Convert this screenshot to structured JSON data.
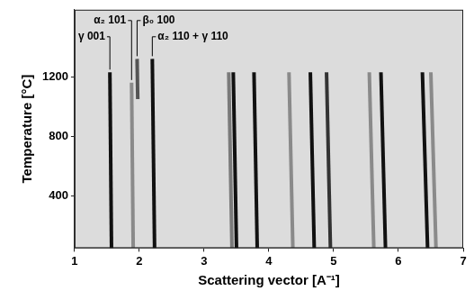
{
  "chart_data": {
    "type": "line",
    "x_label": "Scattering vector [A⁻¹]",
    "y_label": "Temperature [°C]",
    "xlim": [
      1,
      7
    ],
    "xticks": [
      1,
      2,
      3,
      4,
      5,
      6,
      7
    ],
    "ylim": [
      50,
      1650
    ],
    "yticks": [
      400,
      800,
      1200
    ],
    "grid": false,
    "series": [
      {
        "color": "#111111",
        "x": [
          1.57,
          1.545
        ],
        "values": [
          50,
          1230
        ]
      },
      {
        "color": "#8a8a8a",
        "x": [
          1.905,
          1.88
        ],
        "values": [
          50,
          1160
        ]
      },
      {
        "color": "#555555",
        "x": [
          1.975,
          1.965
        ],
        "values": [
          1050,
          1320
        ]
      },
      {
        "color": "#111111",
        "x": [
          2.235,
          2.2
        ],
        "values": [
          50,
          1320
        ]
      },
      {
        "color": "#7a7a7a",
        "x": [
          3.43,
          3.38
        ],
        "values": [
          50,
          1230
        ]
      },
      {
        "color": "#111111",
        "x": [
          3.5,
          3.45
        ],
        "values": [
          50,
          1230
        ]
      },
      {
        "color": "#111111",
        "x": [
          3.82,
          3.77
        ],
        "values": [
          50,
          1230
        ]
      },
      {
        "color": "#8a8a8a",
        "x": [
          4.37,
          4.31
        ],
        "values": [
          50,
          1230
        ]
      },
      {
        "color": "#111111",
        "x": [
          4.7,
          4.64
        ],
        "values": [
          50,
          1230
        ]
      },
      {
        "color": "#333333",
        "x": [
          4.95,
          4.89
        ],
        "values": [
          50,
          1230
        ]
      },
      {
        "color": "#8a8a8a",
        "x": [
          5.62,
          5.55
        ],
        "values": [
          50,
          1230
        ]
      },
      {
        "color": "#111111",
        "x": [
          5.8,
          5.73
        ],
        "values": [
          50,
          1230
        ]
      },
      {
        "color": "#111111",
        "x": [
          6.45,
          6.37
        ],
        "values": [
          50,
          1230
        ]
      },
      {
        "color": "#8a8a8a",
        "x": [
          6.58,
          6.5
        ],
        "values": [
          50,
          1230
        ]
      }
    ],
    "annotations": [
      {
        "text": "α₂ 101",
        "x": 1.88,
        "y": 1160
      },
      {
        "text": "γ 001",
        "x": 1.545,
        "y": 1230
      },
      {
        "text": "β₀ 100",
        "x": 1.965,
        "y": 1320
      },
      {
        "text": "α₂ 110 + γ 110",
        "x": 2.2,
        "y": 1320
      }
    ]
  }
}
